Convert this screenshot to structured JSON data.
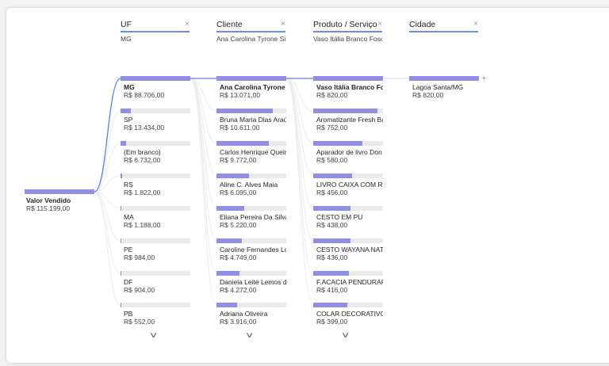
{
  "columns": [
    {
      "title": "UF",
      "selected": "MG"
    },
    {
      "title": "Cliente",
      "selected": "Ana Carolina Tyrone Si..."
    },
    {
      "title": "Produto / Serviço",
      "selected": "Vaso Itália Branco Fosc..."
    },
    {
      "title": "Cidade",
      "selected": ""
    }
  ],
  "icons": {
    "close": "×",
    "expand_down": "∨",
    "add": "+"
  },
  "root": {
    "label": "Valor Vendido",
    "value": "R$ 115.199,00"
  },
  "uf": [
    {
      "label": "MG",
      "value": "R$ 88.706,00",
      "pct": 100
    },
    {
      "label": "SP",
      "value": "R$ 13.434,00",
      "pct": 15
    },
    {
      "label": "(Em branco)",
      "value": "R$ 6.732,00",
      "pct": 8
    },
    {
      "label": "RS",
      "value": "R$ 1.822,00",
      "pct": 2
    },
    {
      "label": "MA",
      "value": "R$ 1.188,00",
      "pct": 1.5
    },
    {
      "label": "PE",
      "value": "R$ 984,00",
      "pct": 1.2
    },
    {
      "label": "DF",
      "value": "R$ 904,00",
      "pct": 1.1
    },
    {
      "label": "PB",
      "value": "R$ 552,00",
      "pct": 0.7
    }
  ],
  "cliente": [
    {
      "label": "Ana Carolina Tyrone ...",
      "value": "R$ 13.071,00",
      "pct": 100
    },
    {
      "label": "Bruna Maria Dias Araúj...",
      "value": "R$ 10.611,00",
      "pct": 81
    },
    {
      "label": "Carlos Henrique Queir...",
      "value": "R$ 9.772,00",
      "pct": 75
    },
    {
      "label": "Aline C. Alves Maia",
      "value": "R$ 6.095,00",
      "pct": 47
    },
    {
      "label": "Eliana Pereira Da Silva ...",
      "value": "R$ 5.220,00",
      "pct": 40
    },
    {
      "label": "Caroline Fernandes Lo...",
      "value": "R$ 4.749,00",
      "pct": 36
    },
    {
      "label": "Daniela Leite Lemos d...",
      "value": "R$ 4.272,00",
      "pct": 33
    },
    {
      "label": "Adriana Oliveira",
      "value": "R$ 3.916,00",
      "pct": 30
    }
  ],
  "produto": [
    {
      "label": "Vaso Itália Branco Fo...",
      "value": "R$ 820,00",
      "pct": 100
    },
    {
      "label": "Aromatizante Fresh Ba...",
      "value": "R$ 752,00",
      "pct": 92
    },
    {
      "label": "Aparador de livro Don ...",
      "value": "R$ 580,00",
      "pct": 71
    },
    {
      "label": "LIVRO CAIXA COM RE...",
      "value": "R$ 456,00",
      "pct": 56
    },
    {
      "label": "CESTO EM PU",
      "value": "R$ 438,00",
      "pct": 53
    },
    {
      "label": "CESTO WAYANA NATU...",
      "value": "R$ 436,00",
      "pct": 53
    },
    {
      "label": "F.ACACIA PENDURAR ...",
      "value": "R$ 416,00",
      "pct": 51
    },
    {
      "label": "COLAR DECORATIVO E...",
      "value": "R$ 399,00",
      "pct": 49
    }
  ],
  "cidade": [
    {
      "label": "Lagoa Santa/MG",
      "value": "R$ 820,00",
      "pct": 100
    }
  ],
  "colors": {
    "accent_bar": "#8f8fe8",
    "track": "#eaeaea",
    "header_underline": "#6b8de8",
    "active_link": "#5b7fe6"
  }
}
